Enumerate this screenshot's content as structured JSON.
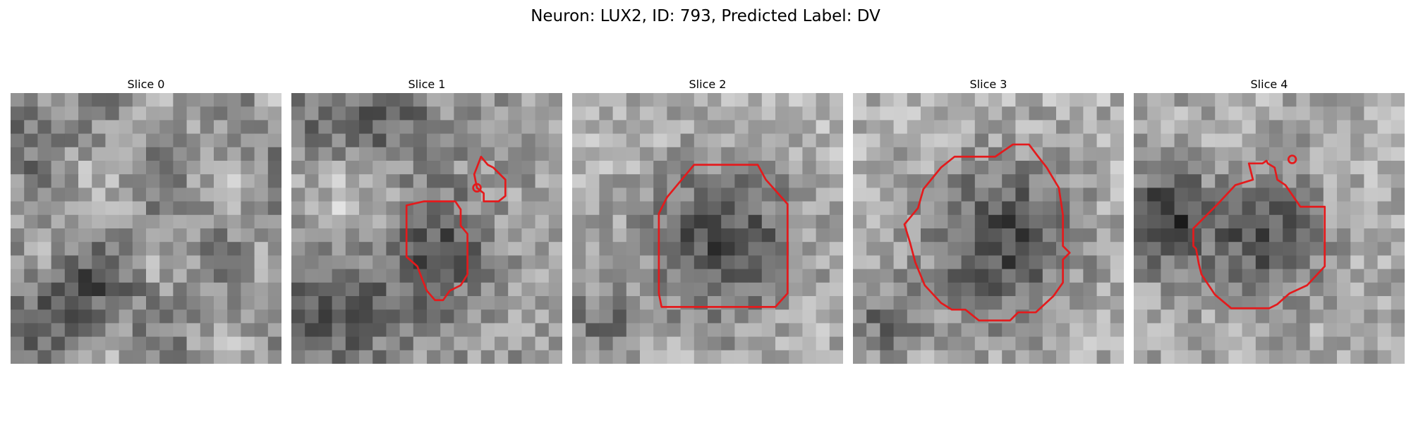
{
  "figure": {
    "title": "Neuron: LUX2, ID: 793, Predicted Label: DV"
  },
  "style": {
    "contour_color": "#e41a1c"
  },
  "slices": [
    {
      "title": "Slice 0",
      "pattern": "mottled",
      "contours": []
    },
    {
      "title": "Slice 1",
      "pattern": "small-dark-blob",
      "contours": [
        [
          [
            9.8,
            8.0
          ],
          [
            12.1,
            8.0
          ],
          [
            12.5,
            8.6
          ],
          [
            12.5,
            9.8
          ],
          [
            13.0,
            10.4
          ],
          [
            13.0,
            13.4
          ],
          [
            12.5,
            14.2
          ],
          [
            11.7,
            14.6
          ],
          [
            11.2,
            15.3
          ],
          [
            10.6,
            15.3
          ],
          [
            10.0,
            14.6
          ],
          [
            9.6,
            13.6
          ],
          [
            9.3,
            12.8
          ],
          [
            8.5,
            12.1
          ],
          [
            8.5,
            8.3
          ]
        ],
        [
          [
            14.0,
            4.7
          ],
          [
            14.5,
            5.3
          ],
          [
            14.9,
            5.5
          ],
          [
            15.8,
            6.4
          ],
          [
            15.8,
            7.6
          ],
          [
            15.3,
            8.0
          ],
          [
            14.2,
            8.0
          ],
          [
            14.2,
            7.4
          ],
          [
            13.7,
            7.0
          ],
          [
            13.5,
            6.0
          ]
        ]
      ],
      "markers": [
        [
          13.7,
          7.0
        ]
      ]
    },
    {
      "title": "Slice 2",
      "pattern": "large-dark-blob",
      "contours": [
        [
          [
            9.0,
            5.3
          ],
          [
            13.7,
            5.3
          ],
          [
            14.3,
            6.4
          ],
          [
            15.9,
            8.2
          ],
          [
            15.9,
            14.8
          ],
          [
            15.0,
            15.8
          ],
          [
            6.6,
            15.8
          ],
          [
            6.4,
            14.8
          ],
          [
            6.4,
            8.9
          ],
          [
            7.0,
            7.7
          ]
        ]
      ]
    },
    {
      "title": "Slice 3",
      "pattern": "large-dark-blob",
      "contours": [
        [
          [
            7.5,
            4.7
          ],
          [
            10.5,
            4.7
          ],
          [
            11.8,
            3.8
          ],
          [
            13.0,
            3.8
          ],
          [
            13.6,
            4.6
          ],
          [
            14.3,
            5.5
          ],
          [
            15.2,
            7.0
          ],
          [
            15.5,
            9.0
          ],
          [
            15.5,
            11.3
          ],
          [
            16.0,
            11.8
          ],
          [
            15.5,
            12.3
          ],
          [
            15.5,
            14.0
          ],
          [
            14.8,
            15.0
          ],
          [
            13.5,
            16.2
          ],
          [
            12.2,
            16.2
          ],
          [
            11.6,
            16.8
          ],
          [
            9.3,
            16.8
          ],
          [
            8.3,
            16.0
          ],
          [
            7.3,
            16.0
          ],
          [
            6.5,
            15.5
          ],
          [
            5.3,
            14.2
          ],
          [
            4.6,
            12.5
          ],
          [
            4.2,
            11.0
          ],
          [
            3.8,
            9.7
          ],
          [
            4.8,
            8.5
          ],
          [
            5.2,
            7.1
          ],
          [
            6.5,
            5.5
          ]
        ]
      ]
    },
    {
      "title": "Slice 4",
      "pattern": "dark-blob-with-left-shadow",
      "contours": [
        [
          [
            8.5,
            5.2
          ],
          [
            9.5,
            5.2
          ],
          [
            9.8,
            5.0
          ],
          [
            9.8,
            5.0
          ],
          [
            9.9,
            5.2
          ],
          [
            10.4,
            5.5
          ],
          [
            10.6,
            6.4
          ],
          [
            11.2,
            6.8
          ],
          [
            12.3,
            8.4
          ],
          [
            14.1,
            8.4
          ],
          [
            14.1,
            12.8
          ],
          [
            12.8,
            14.2
          ],
          [
            11.5,
            14.8
          ],
          [
            10.6,
            15.6
          ],
          [
            10.0,
            15.9
          ],
          [
            7.2,
            15.9
          ],
          [
            6.0,
            14.9
          ],
          [
            5.0,
            13.4
          ],
          [
            4.8,
            12.6
          ],
          [
            4.6,
            11.5
          ],
          [
            4.4,
            11.3
          ],
          [
            4.4,
            10.0
          ],
          [
            5.3,
            9.1
          ],
          [
            6.2,
            8.2
          ],
          [
            7.5,
            6.8
          ],
          [
            8.8,
            6.4
          ]
        ]
      ],
      "markers": [
        [
          11.7,
          4.9
        ]
      ]
    }
  ]
}
